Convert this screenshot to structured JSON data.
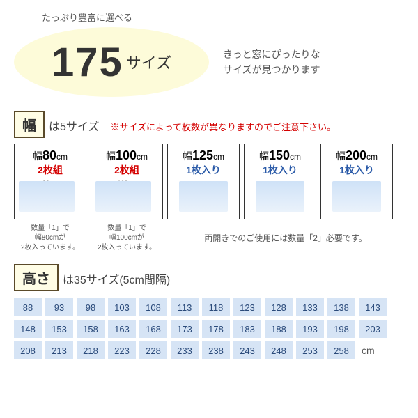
{
  "top_tagline": "たっぷり豊富に選べる",
  "hero": {
    "number": "175",
    "suffix": "サイズ",
    "text_l1": "きっと窓にぴったりな",
    "text_l2": "サイズが見つかります"
  },
  "width": {
    "badge": "幅",
    "sub": "は5サイズ",
    "warn": "※サイズによって枚数が異なりますのでご注意下さい。",
    "cards": [
      {
        "prefix": "幅",
        "num": "80",
        "unit": "cm",
        "qty": "2枚組",
        "qty_style": "red",
        "dim": "80cm",
        "double": true
      },
      {
        "prefix": "幅",
        "num": "100",
        "unit": "cm",
        "qty": "2枚組",
        "qty_style": "red",
        "dim": "100cm",
        "double": true
      },
      {
        "prefix": "幅",
        "num": "125",
        "unit": "cm",
        "qty": "1枚入り",
        "qty_style": "blue",
        "dim": "",
        "double": false
      },
      {
        "prefix": "幅",
        "num": "150",
        "unit": "cm",
        "qty": "1枚入り",
        "qty_style": "blue",
        "dim": "",
        "double": false
      },
      {
        "prefix": "幅",
        "num": "200",
        "unit": "cm",
        "qty": "1枚入り",
        "qty_style": "blue",
        "dim": "",
        "double": false
      }
    ],
    "notes": [
      "数量「1」で\n幅80cmが\n2枚入っています。",
      "数量「1」で\n幅100cmが\n2枚入っています。"
    ],
    "note_wide": "両開きでのご使用には数量「2」必要です。"
  },
  "height": {
    "badge": "高さ",
    "sub": "は35サイズ(5cm間隔)",
    "values": [
      88,
      93,
      98,
      103,
      108,
      113,
      118,
      123,
      128,
      133,
      138,
      143,
      148,
      153,
      158,
      163,
      168,
      173,
      178,
      183,
      188,
      193,
      198,
      203,
      208,
      213,
      218,
      223,
      228,
      233,
      238,
      243,
      248,
      253,
      258
    ],
    "unit": "cm",
    "cell_bg": "#d6e4f5",
    "cell_color": "#2a4a7a"
  },
  "colors": {
    "oval_bg": "#fdfbd9",
    "badge_bg": "#fffde6",
    "badge_border": "#5a4a2a",
    "red": "#d40000",
    "blue": "#2a5aa8"
  }
}
